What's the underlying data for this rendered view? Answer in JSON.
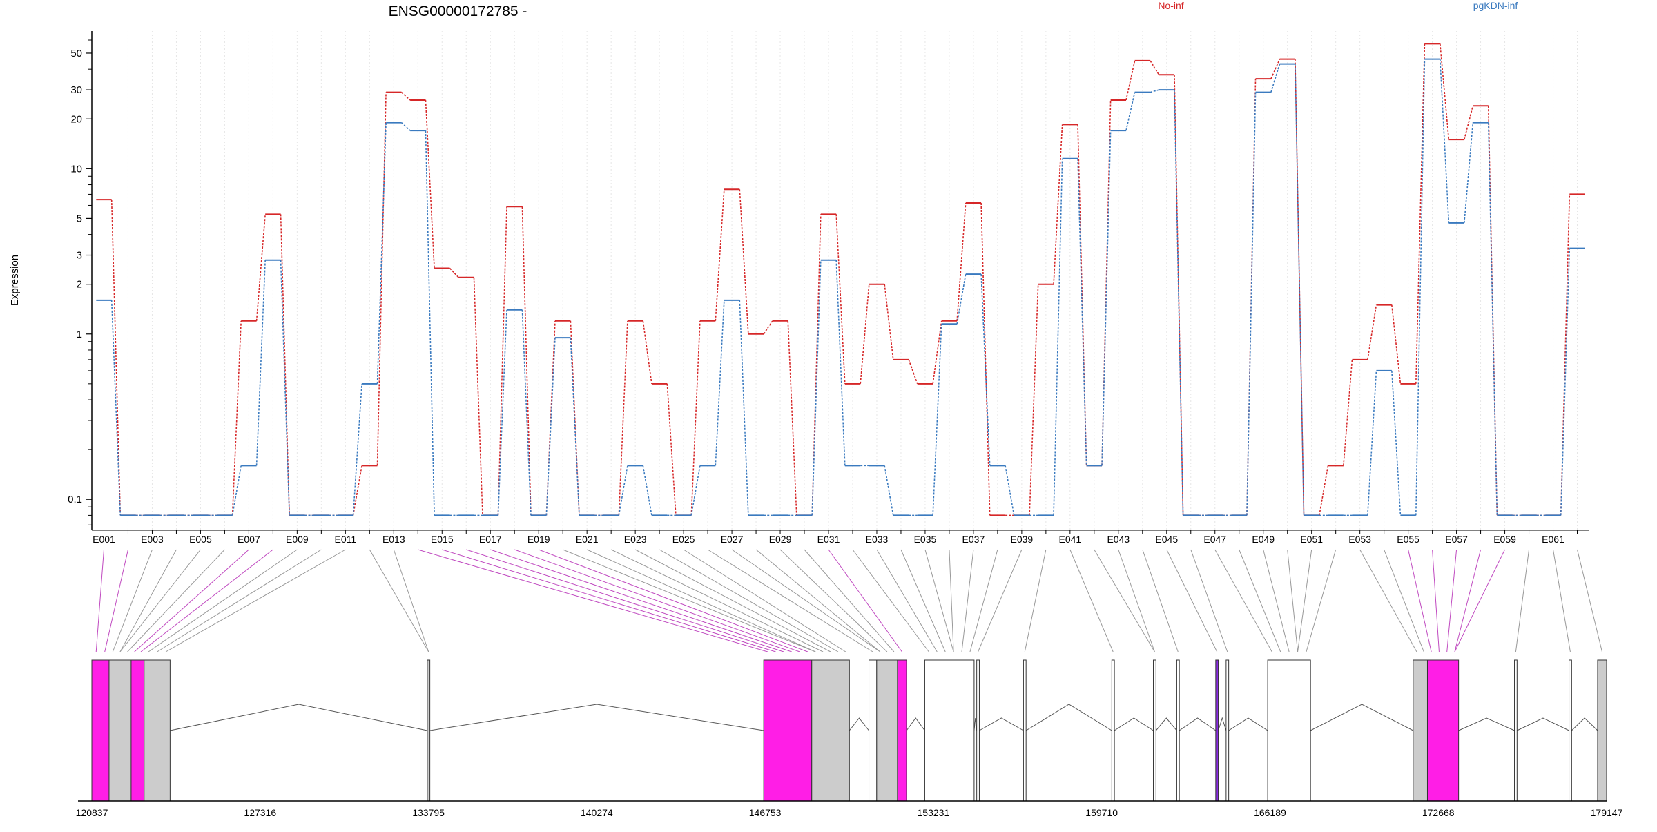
{
  "chart_data": {
    "type": "line",
    "title": "ENSG00000172785 -",
    "ylabel": "Expression",
    "y_scale": "log",
    "yticks": [
      0.1,
      1,
      2,
      3,
      5,
      10,
      20,
      30,
      50
    ],
    "ytick_labels": [
      "0.1",
      "1",
      "2",
      "3",
      "5",
      "10",
      "20",
      "30",
      "50"
    ],
    "legend": [
      {
        "name": "No-inf",
        "color": "#d62728"
      },
      {
        "name": "pgKDN-inf",
        "color": "#3a7abf"
      }
    ],
    "exon_tick_labels": [
      "E001",
      "E003",
      "E005",
      "E007",
      "E009",
      "E011",
      "E013",
      "E015",
      "E017",
      "E019",
      "E021",
      "E023",
      "E025",
      "E027",
      "E029",
      "E031",
      "E033",
      "E035",
      "E037",
      "E039",
      "E041",
      "E043",
      "E045",
      "E047",
      "E049",
      "E051",
      "E053",
      "E055",
      "E057",
      "E059",
      "E061"
    ],
    "series": [
      {
        "name": "No-inf",
        "color": "#d62728",
        "values": [
          6.5,
          0.08,
          0.08,
          0.08,
          0.08,
          0.08,
          1.2,
          5.3,
          0.08,
          0.08,
          0.08,
          0.16,
          29,
          26,
          2.5,
          2.2,
          0.08,
          5.9,
          0.08,
          1.2,
          0.08,
          0.08,
          1.2,
          0.5,
          0.08,
          1.2,
          7.5,
          1.0,
          1.2,
          0.08,
          5.3,
          0.5,
          2.0,
          0.7,
          0.5,
          1.2,
          6.2,
          0.08,
          0.08,
          2.0,
          18.5,
          0.16,
          26,
          45,
          37,
          0.08,
          0.08,
          0.08,
          35,
          46,
          0.08,
          0.16,
          0.7,
          1.5,
          0.5,
          57,
          15,
          24,
          0.08,
          0.08,
          0.08,
          7
        ]
      },
      {
        "name": "pgKDN-inf",
        "color": "#3a7abf",
        "values": [
          1.6,
          0.08,
          0.08,
          0.08,
          0.08,
          0.08,
          0.16,
          2.8,
          0.08,
          0.08,
          0.08,
          0.5,
          19,
          17,
          0.08,
          0.08,
          0.08,
          1.4,
          0.08,
          0.95,
          0.08,
          0.08,
          0.16,
          0.08,
          0.08,
          0.16,
          1.6,
          0.08,
          0.08,
          0.08,
          2.8,
          0.16,
          0.16,
          0.08,
          0.08,
          1.15,
          2.3,
          0.16,
          0.08,
          0.08,
          11.5,
          0.16,
          17,
          29,
          30,
          0.08,
          0.08,
          0.08,
          29,
          43,
          0.08,
          0.08,
          0.08,
          0.6,
          0.08,
          46,
          4.7,
          19,
          0.08,
          0.08,
          0.08,
          3.3
        ]
      }
    ],
    "genomic_axis": {
      "tick_labels": [
        "120837",
        "127316",
        "133795",
        "140274",
        "146753",
        "153231",
        "159710",
        "166189",
        "172668",
        "179147"
      ],
      "range": [
        120837,
        179147
      ]
    },
    "exon_blocks": [
      {
        "start": 120837,
        "end": 121500,
        "fill": "#ff1ee6"
      },
      {
        "start": 121500,
        "end": 122350,
        "fill": "#cccccc"
      },
      {
        "start": 122350,
        "end": 122850,
        "fill": "#ff1ee6"
      },
      {
        "start": 122850,
        "end": 123850,
        "fill": "#cccccc"
      },
      {
        "start": 133750,
        "end": 133850,
        "fill": "#cccccc"
      },
      {
        "start": 146700,
        "end": 148550,
        "fill": "#ff1ee6"
      },
      {
        "start": 148550,
        "end": 150000,
        "fill": "#cccccc"
      },
      {
        "start": 150750,
        "end": 151050,
        "fill": "#ffffff"
      },
      {
        "start": 151050,
        "end": 151850,
        "fill": "#cccccc"
      },
      {
        "start": 151850,
        "end": 152200,
        "fill": "#ff1ee6"
      },
      {
        "start": 152900,
        "end": 154800,
        "fill": "#ffffff"
      },
      {
        "start": 154900,
        "end": 155000,
        "fill": "#ffffff"
      },
      {
        "start": 156700,
        "end": 156800,
        "fill": "#ffffff"
      },
      {
        "start": 160100,
        "end": 160200,
        "fill": "#ffffff"
      },
      {
        "start": 161700,
        "end": 161800,
        "fill": "#ffffff"
      },
      {
        "start": 162600,
        "end": 162700,
        "fill": "#ffffff"
      },
      {
        "start": 164100,
        "end": 164200,
        "fill": "#8a2be2"
      },
      {
        "start": 164500,
        "end": 164600,
        "fill": "#ffffff"
      },
      {
        "start": 166100,
        "end": 167750,
        "fill": "#ffffff"
      },
      {
        "start": 171700,
        "end": 172250,
        "fill": "#cccccc"
      },
      {
        "start": 172250,
        "end": 173450,
        "fill": "#ff1ee6"
      },
      {
        "start": 175600,
        "end": 175700,
        "fill": "#ffffff"
      },
      {
        "start": 177700,
        "end": 177800,
        "fill": "#ffffff"
      },
      {
        "start": 178800,
        "end": 179147,
        "fill": "#cccccc"
      }
    ]
  }
}
